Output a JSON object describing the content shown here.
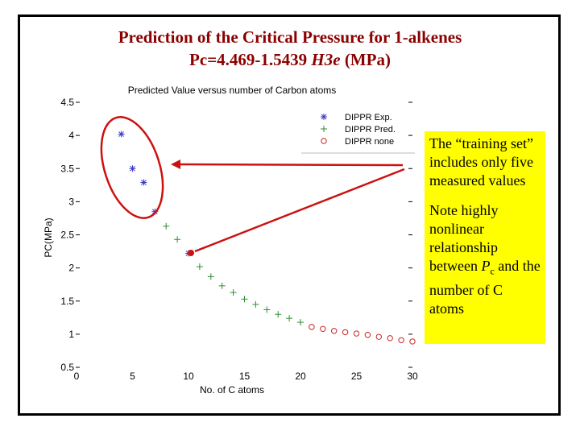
{
  "slide": {
    "title_line1": "Prediction of the Critical Pressure for 1-alkenes",
    "title_line2_prefix": "Pc=4.469-1.5439 ",
    "title_line2_italic": "H3e",
    "title_line2_suffix": " (MPa)",
    "callout_text1": "The “training set” includes only five measured values",
    "callout_text2_a": "Note highly nonlinear relationship between ",
    "callout_text2_var": "P",
    "callout_text2_sub": "c",
    "callout_text2_b": " and the number of C atoms"
  },
  "colors": {
    "frame": "#000000",
    "title": "#8b0000",
    "callout_bg": "#ffff00",
    "exp": "#3a3acd",
    "pred": "#2e8b2e",
    "none": "#cc2222",
    "annotation": "#cc1111"
  },
  "chart_data": {
    "type": "scatter",
    "title": "Predicted Value versus number of Carbon atoms",
    "xlabel": "No. of C atoms",
    "ylabel": "PC(MPa)",
    "xlim": [
      0,
      30
    ],
    "ylim": [
      0.5,
      4.5
    ],
    "xticks": [
      "0",
      "5",
      "10",
      "15",
      "20",
      "25",
      "30"
    ],
    "yticks": [
      "0.5",
      "1",
      "1.5",
      "2",
      "2.5",
      "3",
      "3.5",
      "4",
      "4.5"
    ],
    "legend_position": "top-right",
    "series": [
      {
        "name": "DIPPR Exp.",
        "marker": "*",
        "color": "exp",
        "x": [
          4,
          5,
          6,
          7,
          10
        ],
        "y": [
          4.02,
          3.5,
          3.29,
          2.85,
          2.22
        ]
      },
      {
        "name": "DIPPR Pred.",
        "marker": "+",
        "color": "pred",
        "x": [
          8,
          9,
          11,
          12,
          13,
          14,
          15,
          16,
          17,
          18,
          19,
          20
        ],
        "y": [
          2.63,
          2.43,
          2.02,
          1.87,
          1.73,
          1.63,
          1.53,
          1.45,
          1.37,
          1.3,
          1.24,
          1.18
        ]
      },
      {
        "name": "DIPPR none",
        "marker": "o",
        "color": "none",
        "x": [
          21,
          22,
          23,
          24,
          25,
          26,
          27,
          28,
          29,
          30
        ],
        "y": [
          1.11,
          1.08,
          1.05,
          1.03,
          1.01,
          0.99,
          0.96,
          0.94,
          0.91,
          0.89
        ]
      }
    ]
  }
}
